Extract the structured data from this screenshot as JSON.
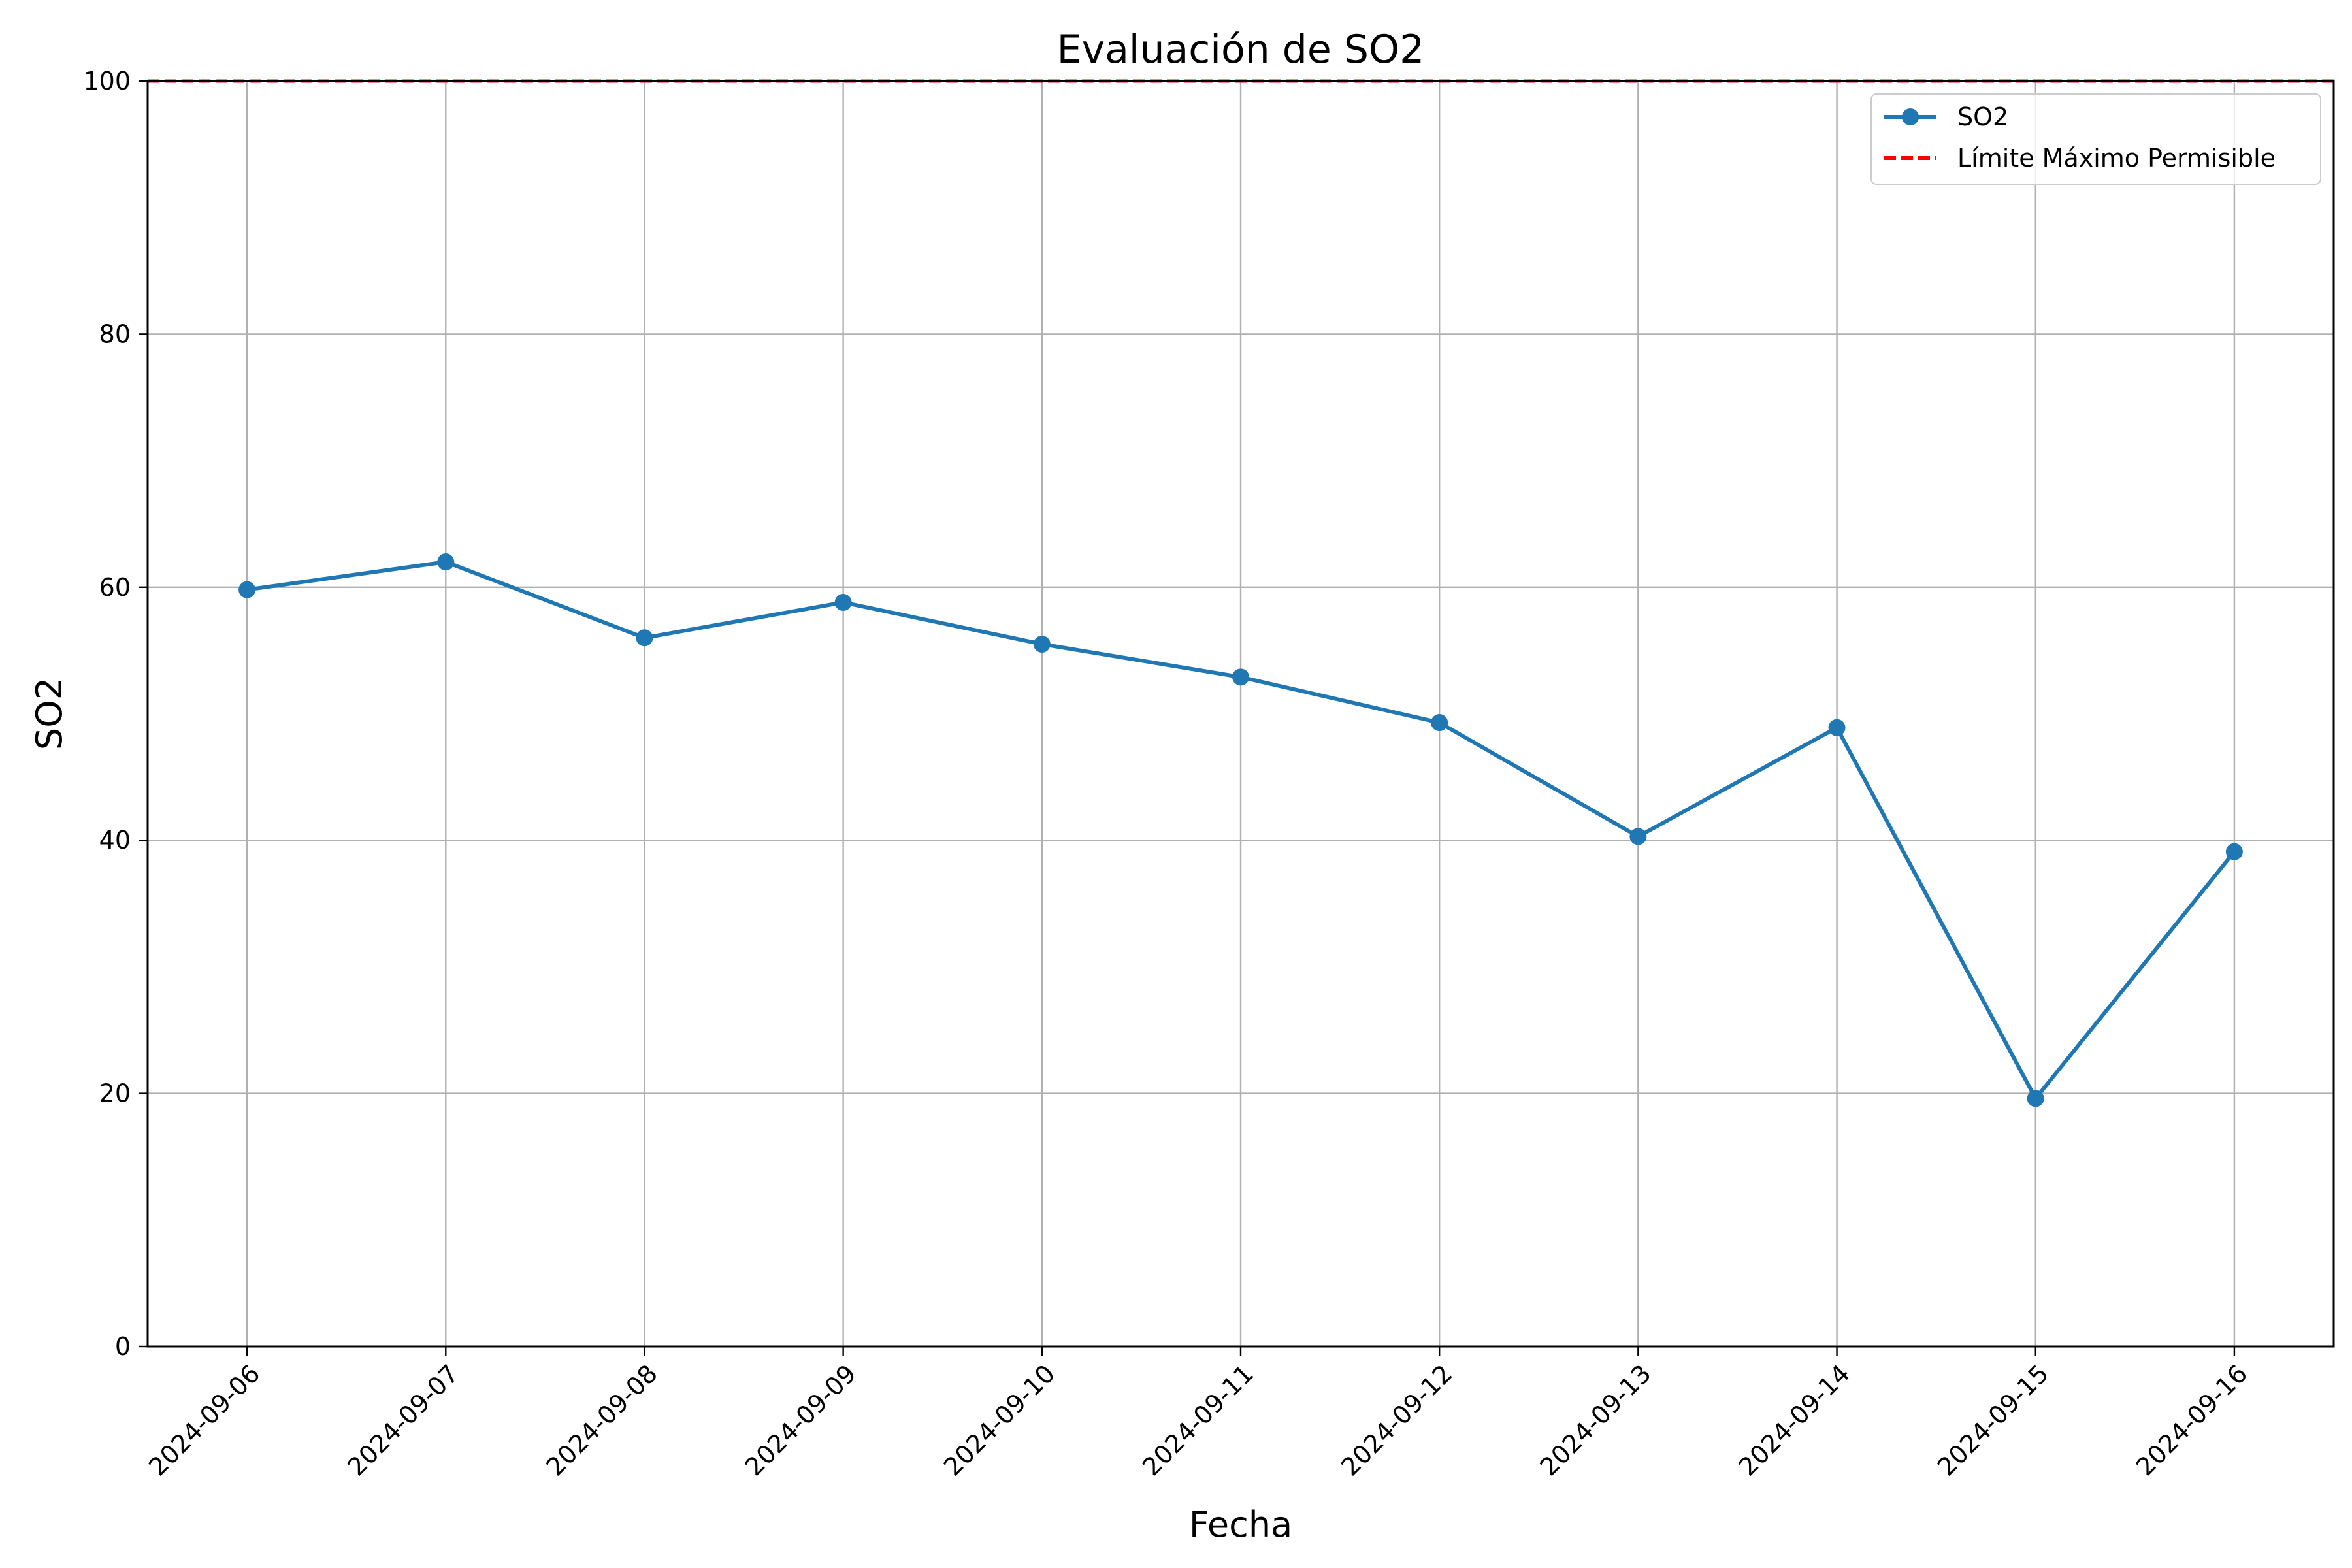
{
  "chart_data": {
    "type": "line",
    "title": "Evaluación de SO2",
    "xlabel": "Fecha",
    "ylabel": "SO2",
    "ylim": [
      0,
      100
    ],
    "yticks": [
      0,
      20,
      40,
      60,
      80,
      100
    ],
    "grid": true,
    "legend_position": "top-right",
    "x": [
      "2024-09-06",
      "2024-09-07",
      "2024-09-08",
      "2024-09-09",
      "2024-09-10",
      "2024-09-11",
      "2024-09-12",
      "2024-09-13",
      "2024-09-14",
      "2024-09-15",
      "2024-09-16"
    ],
    "series": [
      {
        "name": "SO2",
        "color": "#1f77b4",
        "values": [
          59.8,
          62.0,
          56.0,
          58.8,
          55.5,
          52.9,
          49.3,
          40.3,
          48.9,
          19.6,
          39.1
        ]
      }
    ],
    "reference_lines": [
      {
        "name": "Límite Máximo Permisible",
        "value": 100,
        "color": "#ff0000",
        "style": "dashed"
      }
    ]
  }
}
